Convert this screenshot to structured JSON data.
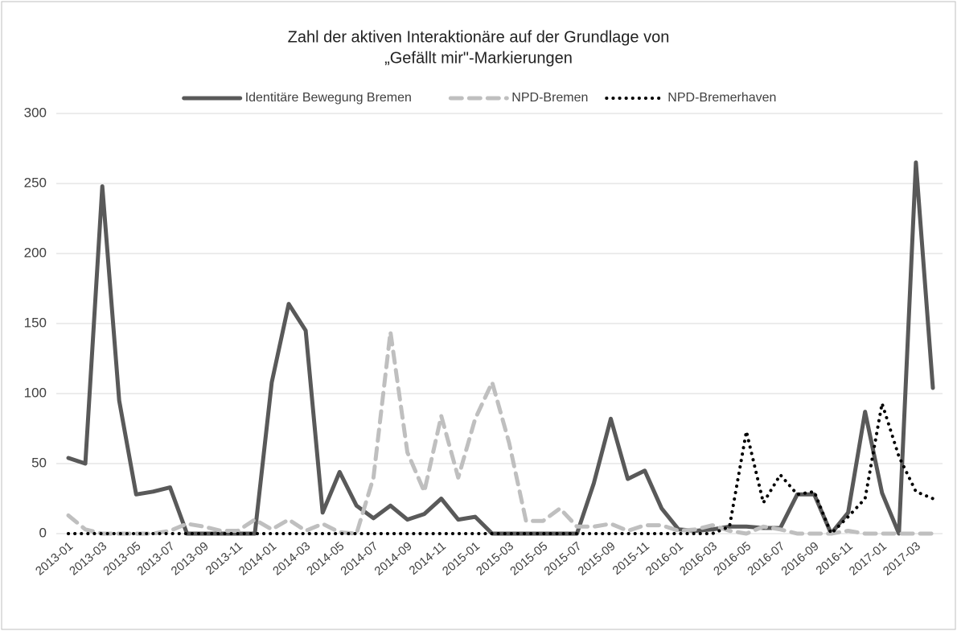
{
  "chart_data": {
    "type": "line",
    "title": [
      "Zahl der aktiven Interaktionäre auf der Grundlage von",
      "„Gefällt mir\"-Markierungen"
    ],
    "categories": [
      "2013-01",
      null,
      "2013-03",
      null,
      "2013-05",
      null,
      "2013-07",
      null,
      "2013-09",
      null,
      "2013-11",
      null,
      "2014-01",
      null,
      "2014-03",
      null,
      "2014-05",
      null,
      "2014-07",
      null,
      "2014-09",
      null,
      "2014-11",
      null,
      "2015-01",
      null,
      "2015-03",
      null,
      "2015-05",
      null,
      "2015-07",
      null,
      "2015-09",
      null,
      "2015-11",
      null,
      "2016-01",
      null,
      "2016-03",
      null,
      "2016-05",
      null,
      "2016-07",
      null,
      "2016-09",
      null,
      "2016-11",
      null,
      "2017-01",
      null,
      "2017-03",
      null
    ],
    "series": [
      {
        "name": "Identitäre Bewegung Bremen",
        "color": "#595959",
        "dash": "solid",
        "values": [
          54,
          50,
          248,
          95,
          28,
          30,
          33,
          0,
          0,
          0,
          0,
          0,
          108,
          164,
          145,
          15,
          44,
          20,
          11,
          20,
          10,
          14,
          25,
          10,
          12,
          0,
          0,
          0,
          0,
          0,
          0,
          36,
          82,
          39,
          45,
          18,
          3,
          2,
          3,
          5,
          5,
          4,
          4,
          28,
          28,
          0,
          15,
          87,
          29,
          0,
          265,
          104
        ]
      },
      {
        "name": "NPD-Bremen",
        "color": "#bfbfbf",
        "dash": "dashed",
        "values": [
          13,
          3,
          0,
          0,
          0,
          0,
          2,
          7,
          5,
          2,
          2,
          10,
          3,
          10,
          2,
          7,
          1,
          0,
          40,
          144,
          58,
          30,
          84,
          40,
          82,
          108,
          65,
          9,
          9,
          18,
          5,
          5,
          7,
          2,
          6,
          6,
          2,
          3,
          6,
          2,
          0,
          5,
          3,
          0,
          0,
          0,
          2,
          0,
          0,
          0,
          0,
          0
        ]
      },
      {
        "name": "NPD-Bremerhaven",
        "color": "#000000",
        "dash": "dotted",
        "values": [
          0,
          0,
          0,
          0,
          0,
          0,
          0,
          0,
          0,
          0,
          0,
          0,
          0,
          0,
          0,
          0,
          0,
          0,
          0,
          0,
          0,
          0,
          0,
          0,
          0,
          0,
          0,
          0,
          0,
          0,
          0,
          0,
          0,
          0,
          0,
          0,
          0,
          0,
          0,
          5,
          73,
          22,
          42,
          28,
          30,
          0,
          12,
          25,
          93,
          55,
          30,
          25
        ]
      }
    ],
    "ylim": [
      0,
      300
    ],
    "yticks": [
      0,
      50,
      100,
      150,
      200,
      250,
      300
    ],
    "grid": true,
    "legend": "top"
  }
}
